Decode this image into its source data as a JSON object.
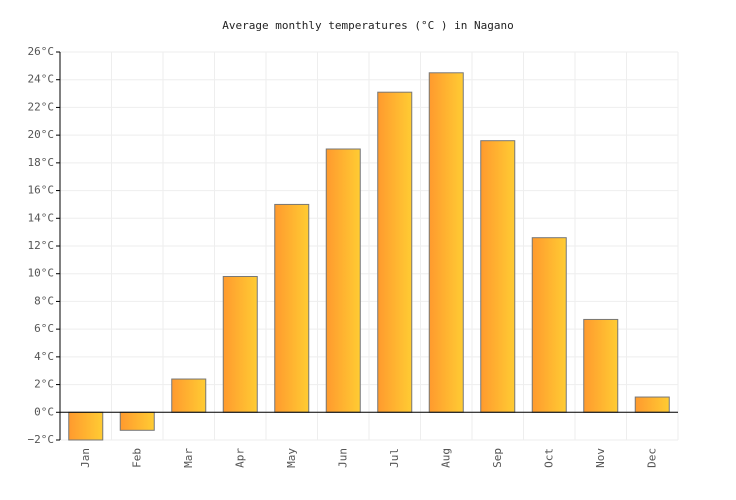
{
  "chart_data": {
    "type": "bar",
    "title": "Average monthly temperatures (°C ) in Nagano",
    "categories": [
      "Jan",
      "Feb",
      "Mar",
      "Apr",
      "May",
      "Jun",
      "Jul",
      "Aug",
      "Sep",
      "Oct",
      "Nov",
      "Dec"
    ],
    "values": [
      -2.0,
      -1.3,
      2.4,
      9.8,
      15.0,
      19.0,
      23.1,
      24.5,
      19.6,
      12.6,
      6.7,
      1.1
    ],
    "color": [
      "#ff9a2e",
      "#ffcc33"
    ],
    "ylim": [
      -2,
      26
    ],
    "yticks": [
      {
        "value": -2,
        "label": "−2°C"
      },
      {
        "value": 0,
        "label": "0°C"
      },
      {
        "value": 2,
        "label": "2°C"
      },
      {
        "value": 4,
        "label": "4°C"
      },
      {
        "value": 6,
        "label": "6°C"
      },
      {
        "value": 8,
        "label": "8°C"
      },
      {
        "value": 10,
        "label": "10°C"
      },
      {
        "value": 12,
        "label": "12°C"
      },
      {
        "value": 14,
        "label": "14°C"
      },
      {
        "value": 16,
        "label": "16°C"
      },
      {
        "value": 18,
        "label": "18°C"
      },
      {
        "value": 20,
        "label": "20°C"
      },
      {
        "value": 22,
        "label": "22°C"
      },
      {
        "value": 24,
        "label": "24°C"
      },
      {
        "value": 26,
        "label": "26°C"
      }
    ],
    "grid": true
  }
}
